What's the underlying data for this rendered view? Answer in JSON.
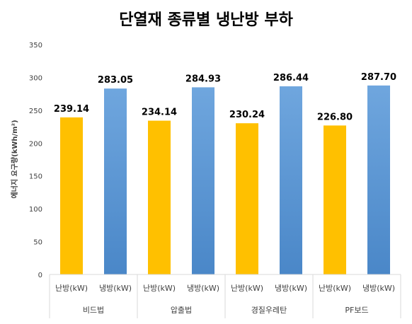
{
  "chart_data": {
    "type": "bar",
    "title": "단열재 종류별 냉난방 부하",
    "ylabel": "에너지 요구량(kWh/m²)",
    "ylim": [
      0,
      350
    ],
    "yticks": [
      0,
      50,
      100,
      150,
      200,
      250,
      300,
      350
    ],
    "groups": [
      "비드법",
      "압출법",
      "경질우레탄",
      "PF보드"
    ],
    "sub_categories": [
      "난방(kW)",
      "냉방(kW)"
    ],
    "series": [
      {
        "values": [
          239.14,
          234.14,
          230.24,
          226.8
        ],
        "labels": [
          "239.14",
          "234.14",
          "230.24",
          "226.80"
        ],
        "color": "#FFC000"
      },
      {
        "values": [
          283.05,
          284.93,
          286.44,
          287.7
        ],
        "labels": [
          "283.05",
          "284.93",
          "286.44",
          "287.70"
        ],
        "color_top": "#6FA6DE",
        "color_bottom": "#4A87C8"
      }
    ],
    "grid": false,
    "legend": "none"
  }
}
